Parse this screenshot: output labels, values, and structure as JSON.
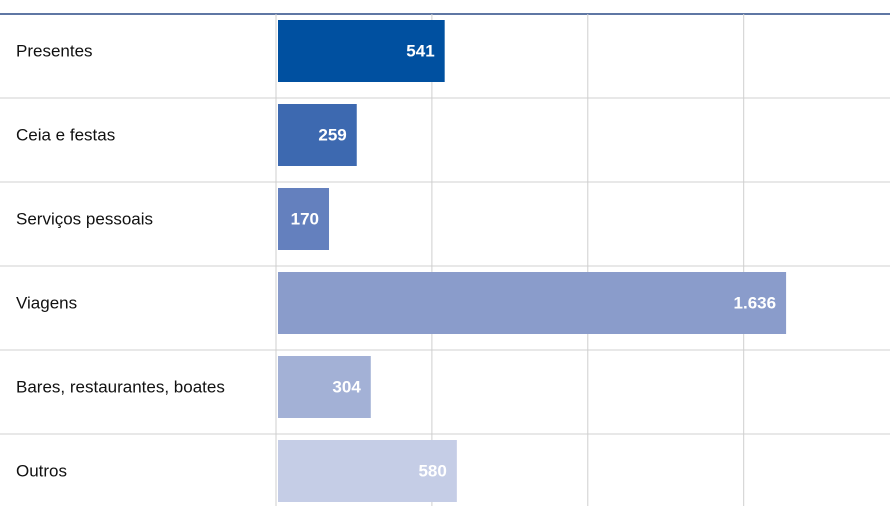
{
  "chart_data": {
    "type": "bar",
    "orientation": "horizontal",
    "categories": [
      "Presentes",
      "Ceia e festas",
      "Serviços pessoais",
      "Viagens",
      "Bares, restaurantes, boates",
      "Outros"
    ],
    "values": [
      541,
      259,
      170,
      1636,
      304,
      580
    ],
    "value_labels": [
      "541",
      "259",
      "170",
      "1.636",
      "304",
      "580"
    ],
    "colors": [
      "#0050a0",
      "#3d69b0",
      "#6480be",
      "#8a9ccb",
      "#a3b1d6",
      "#c5cde6"
    ],
    "xlim": [
      0,
      1950
    ],
    "xticks": [
      0,
      500,
      1000,
      1500
    ],
    "grid": true
  }
}
